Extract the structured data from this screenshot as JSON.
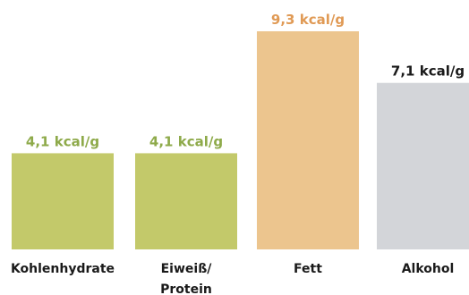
{
  "chart_data": {
    "type": "bar",
    "categories": [
      [
        "Kohlenhydrate"
      ],
      [
        "Eiweiß/",
        "Protein"
      ],
      [
        "Fett"
      ],
      [
        "Alkohol"
      ]
    ],
    "values": [
      4.1,
      4.1,
      9.3,
      7.1
    ],
    "data_labels": [
      "4,1 kcal/g",
      "4,1 kcal/g",
      "9,3 kcal/g",
      "7,1 kcal/g"
    ],
    "bar_colors": [
      "#c3c96a",
      "#c3c96a",
      "#ecc58e",
      "#d3d5d9"
    ],
    "label_colors": [
      "#8eaa4a",
      "#8eaa4a",
      "#e09a55",
      "#1a1a1a"
    ],
    "ylim": [
      0,
      9.3
    ],
    "grid": false,
    "legend": "none"
  }
}
